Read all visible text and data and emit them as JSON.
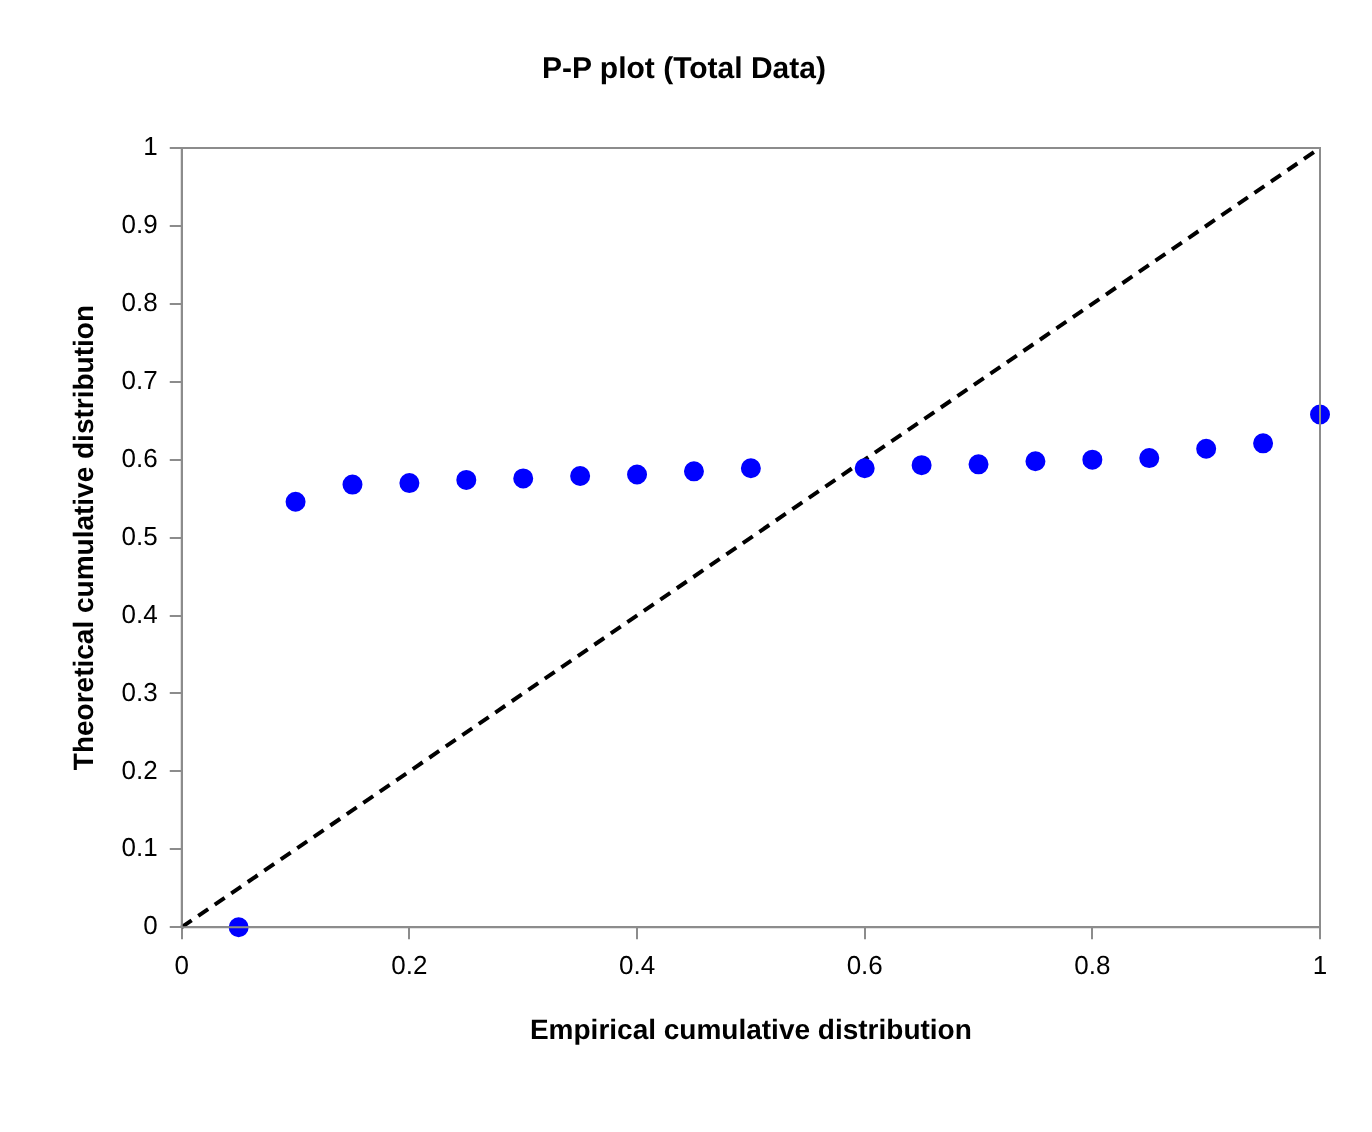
{
  "chart_data": {
    "type": "scatter",
    "title": "P-P plot (Total Data)",
    "xlabel": "Empirical cumulative distribution",
    "ylabel": "Theoretical cumulative distribution",
    "xlim": [
      0,
      1
    ],
    "xticks": [
      0,
      0.2,
      0.4,
      0.6,
      0.8,
      1
    ],
    "ylim": [
      0,
      1
    ],
    "yticks": [
      0,
      0.1,
      0.2,
      0.3,
      0.4,
      0.5,
      0.6,
      0.7,
      0.8,
      0.9,
      1
    ],
    "grid": false,
    "legend": false,
    "marker": "circle",
    "series": [
      {
        "type": "scatter",
        "color": "#0000ff",
        "x": [
          0.05,
          0.1,
          0.15,
          0.2,
          0.25,
          0.3,
          0.35,
          0.4,
          0.45,
          0.5,
          0.6,
          0.65,
          0.7,
          0.75,
          0.8,
          0.85,
          0.9,
          0.95,
          1
        ],
        "values": [
          0,
          0.546,
          0.568,
          0.57,
          0.574,
          0.576,
          0.579,
          0.581,
          0.585,
          0.589,
          0.589,
          0.593,
          0.594,
          0.598,
          0.6,
          0.602,
          0.614,
          0.621,
          0.658
        ]
      },
      {
        "type": "line",
        "color": "#000000",
        "line_style": "dashed",
        "marker": "none",
        "x": [
          0,
          1
        ],
        "values": [
          0,
          1
        ]
      }
    ]
  }
}
